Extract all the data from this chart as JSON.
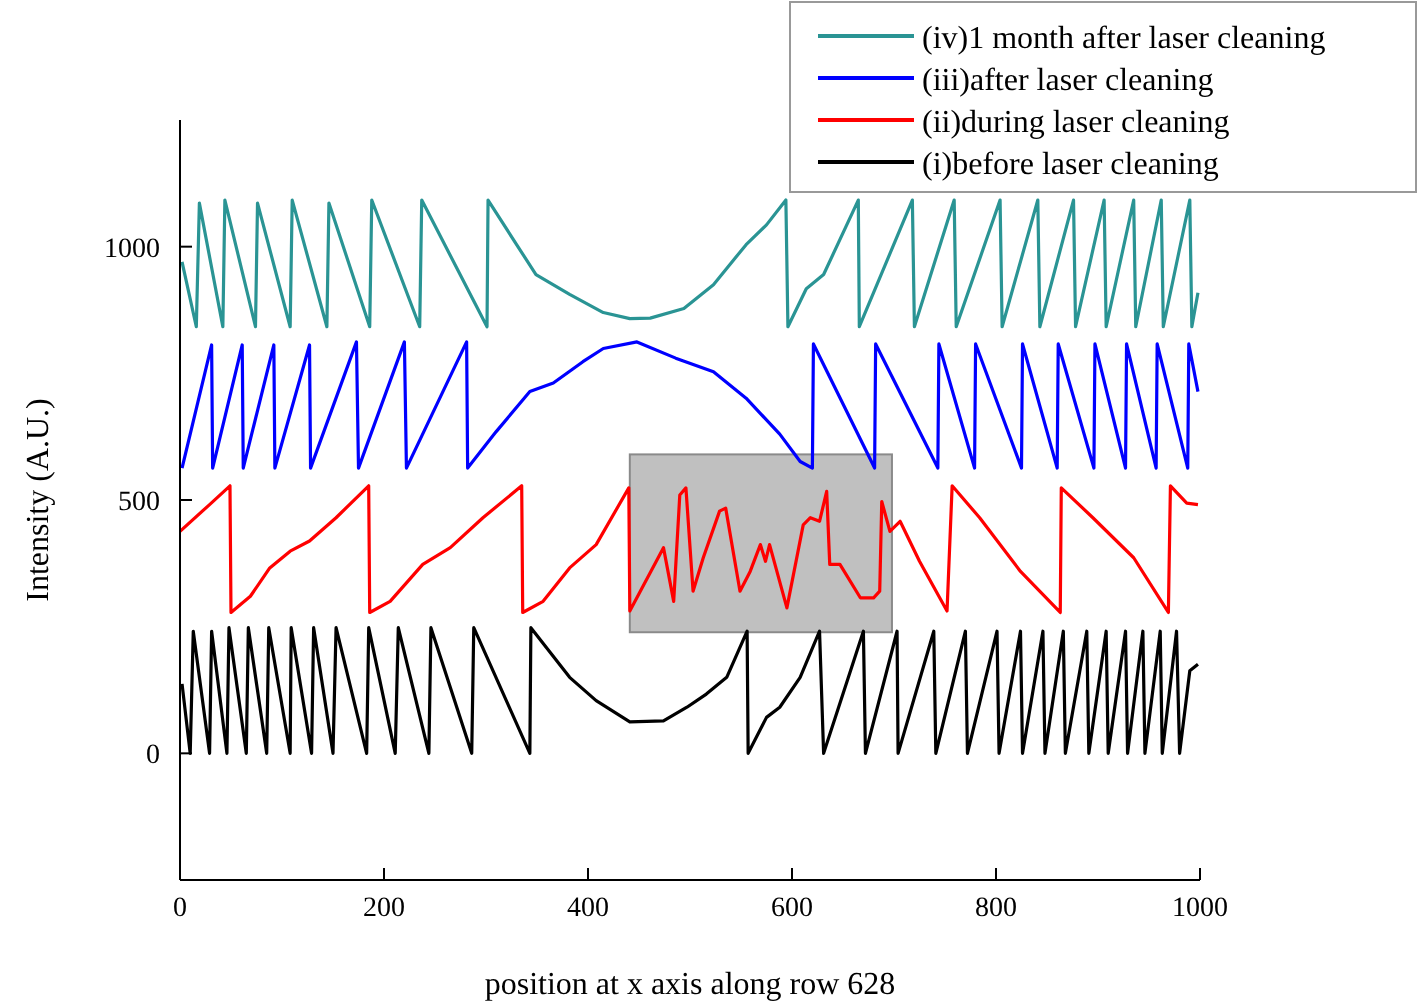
{
  "chart_data": {
    "type": "line",
    "xlabel": "position at x axis along row 628",
    "ylabel": "Intensity (A.U.)",
    "xlim": [
      0,
      1000
    ],
    "xticks": [
      0,
      200,
      400,
      600,
      800,
      1000
    ],
    "ylim": [
      -250,
      1250
    ],
    "yticks": [
      0,
      500,
      1000
    ],
    "grid": false,
    "legend": "top right",
    "line_style": "solid",
    "marker": "none",
    "series": [
      {
        "name": "(iv)1 month after laser cleaning",
        "color": "#2a9494",
        "x": [
          2,
          16,
          19,
          42,
          44,
          74,
          76,
          108,
          110,
          144,
          146,
          186,
          188,
          235,
          237,
          301,
          302,
          330,
          349,
          382,
          415,
          441,
          461,
          494,
          523,
          555,
          575,
          594,
          596,
          614,
          631,
          665,
          666,
          718,
          720,
          759,
          761,
          804,
          806,
          841,
          843,
          876,
          878,
          906,
          908,
          935,
          937,
          962,
          964,
          990,
          992,
          998
        ],
        "values": [
          970,
          842,
          1086,
          842,
          1092,
          842,
          1086,
          842,
          1092,
          842,
          1086,
          842,
          1092,
          842,
          1092,
          842,
          1092,
          1004,
          945,
          906,
          870,
          858,
          859,
          878,
          925,
          1004,
          1043,
          1092,
          842,
          917,
          945,
          1092,
          842,
          1092,
          842,
          1092,
          842,
          1092,
          842,
          1092,
          842,
          1092,
          842,
          1092,
          842,
          1092,
          842,
          1092,
          842,
          1092,
          842,
          909
        ]
      },
      {
        "name": "(iii)after laser cleaning",
        "color": "#0000ff",
        "x": [
          2,
          31,
          32,
          61,
          62,
          92,
          93,
          127,
          128,
          173,
          175,
          220,
          222,
          281,
          282,
          310,
          343,
          366,
          395,
          415,
          448,
          486,
          523,
          555,
          588,
          608,
          620,
          621,
          681,
          682,
          743,
          744,
          779,
          780,
          825,
          826,
          860,
          861,
          896,
          897,
          927,
          928,
          957,
          958,
          988,
          989,
          998
        ],
        "values": [
          563,
          806,
          563,
          806,
          563,
          806,
          563,
          806,
          563,
          812,
          563,
          812,
          563,
          812,
          563,
          635,
          714,
          731,
          773,
          799,
          812,
          780,
          753,
          701,
          630,
          576,
          563,
          808,
          563,
          808,
          563,
          808,
          563,
          808,
          563,
          808,
          563,
          808,
          563,
          808,
          563,
          808,
          563,
          808,
          563,
          808,
          714
        ]
      },
      {
        "name": "(ii)during laser cleaning",
        "color": "#ff0000",
        "x": [
          0,
          29,
          49,
          50,
          69,
          88,
          108,
          127,
          153,
          185,
          186,
          206,
          238,
          265,
          297,
          335,
          336,
          356,
          382,
          408,
          440,
          441,
          474,
          484,
          490,
          496,
          503,
          513,
          529,
          535,
          549,
          559,
          569,
          574,
          578,
          595,
          611,
          618,
          627,
          634,
          637,
          647,
          667,
          680,
          686,
          688,
          696,
          706,
          725,
          752,
          757,
          784,
          824,
          863,
          864,
          895,
          935,
          969,
          971,
          987,
          998
        ],
        "values": [
          438,
          491,
          528,
          278,
          310,
          366,
          399,
          419,
          465,
          528,
          278,
          300,
          373,
          406,
          465,
          528,
          278,
          300,
          366,
          412,
          524,
          281,
          406,
          300,
          510,
          524,
          320,
          386,
          478,
          484,
          320,
          359,
          412,
          379,
          412,
          287,
          451,
          465,
          458,
          517,
          373,
          373,
          307,
          307,
          320,
          497,
          438,
          458,
          379,
          281,
          528,
          465,
          359,
          278,
          524,
          465,
          386,
          278,
          528,
          494,
          491
        ]
      },
      {
        "name": "(i)before laser cleaning",
        "color": "#000000",
        "x": [
          2,
          10,
          13,
          29,
          31,
          46,
          48,
          65,
          67,
          85,
          87,
          108,
          109,
          129,
          131,
          150,
          153,
          183,
          185,
          211,
          214,
          244,
          246,
          286,
          288,
          343,
          344,
          382,
          408,
          441,
          474,
          497,
          516,
          536,
          556,
          557,
          575,
          588,
          608,
          627,
          631,
          670,
          672,
          703,
          704,
          739,
          741,
          770,
          772,
          801,
          803,
          824,
          826,
          846,
          848,
          866,
          868,
          889,
          891,
          908,
          910,
          927,
          929,
          944,
          946,
          961,
          963,
          977,
          980,
          990,
          998
        ],
        "values": [
          137,
          0,
          241,
          0,
          241,
          0,
          248,
          0,
          248,
          0,
          248,
          0,
          248,
          0,
          248,
          0,
          248,
          0,
          248,
          0,
          248,
          0,
          248,
          0,
          248,
          0,
          248,
          150,
          104,
          62,
          64,
          91,
          117,
          150,
          241,
          0,
          71,
          91,
          150,
          241,
          0,
          241,
          0,
          241,
          0,
          241,
          0,
          241,
          0,
          241,
          0,
          241,
          0,
          241,
          0,
          241,
          0,
          241,
          0,
          241,
          0,
          241,
          0,
          241,
          0,
          241,
          0,
          241,
          0,
          163,
          176
        ]
      }
    ]
  }
}
